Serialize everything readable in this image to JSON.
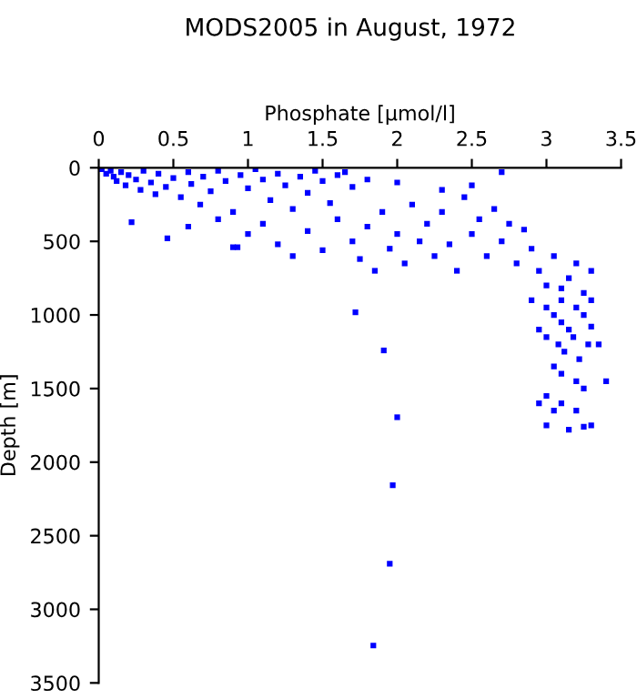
{
  "chart_data": {
    "type": "scatter",
    "title": "MODS2005 in August, 1972",
    "xlabel": "Phosphate [µmol/l]",
    "ylabel": "Depth [m]",
    "xlim": [
      0,
      3.5
    ],
    "xticks": [
      0,
      0.5,
      1,
      1.5,
      2,
      2.5,
      3,
      3.5
    ],
    "ylim": [
      3500,
      0
    ],
    "yticks": [
      0,
      500,
      1000,
      1500,
      2000,
      2500,
      3000,
      3500
    ],
    "marker": "square",
    "grid": false,
    "legend": false,
    "series": [
      {
        "color": "#0000ff",
        "x": [
          0.02,
          0.05,
          0.08,
          0.1,
          0.12,
          0.15,
          0.18,
          0.2,
          0.25,
          0.28,
          0.3,
          0.35,
          0.38,
          0.4,
          0.45,
          0.5,
          0.55,
          0.6,
          0.62,
          0.68,
          0.7,
          0.75,
          0.8,
          0.85,
          0.9,
          0.95,
          1.0,
          1.05,
          1.1,
          1.15,
          1.2,
          1.25,
          1.3,
          1.35,
          1.4,
          1.45,
          1.5,
          1.55,
          1.6,
          1.65,
          1.7,
          0.22,
          0.46,
          0.93,
          0.6,
          0.8,
          0.9,
          1.0,
          1.1,
          1.2,
          1.3,
          1.4,
          1.5,
          1.6,
          1.7,
          1.75,
          1.8,
          1.85,
          1.9,
          1.95,
          2.0,
          2.05,
          2.1,
          2.15,
          2.2,
          2.25,
          2.3,
          2.35,
          2.4,
          2.45,
          2.5,
          2.55,
          2.6,
          2.65,
          2.7,
          2.75,
          2.8,
          2.85,
          2.9,
          2.3,
          2.0,
          1.8,
          2.7,
          2.5,
          2.95,
          3.0,
          3.05,
          3.1,
          3.15,
          3.2,
          3.25,
          3.3,
          3.0,
          3.05,
          3.1,
          3.15,
          3.2,
          3.25,
          3.3,
          3.0,
          3.08,
          3.12,
          3.18,
          3.22,
          3.28,
          3.4,
          3.05,
          3.1,
          3.2,
          3.25,
          3.0,
          3.1,
          3.2,
          2.95,
          3.05,
          3.0,
          3.15,
          3.25,
          3.3,
          3.3,
          3.35,
          2.9,
          2.95,
          3.1,
          1.72,
          1.91,
          2.0,
          1.97,
          1.95,
          1.84
        ],
        "values": [
          10,
          40,
          20,
          60,
          90,
          30,
          120,
          50,
          80,
          150,
          20,
          100,
          180,
          40,
          130,
          70,
          200,
          30,
          110,
          250,
          60,
          160,
          20,
          90,
          300,
          50,
          140,
          10,
          80,
          220,
          40,
          120,
          280,
          60,
          170,
          20,
          90,
          240,
          50,
          30,
          130,
          370,
          480,
          540,
          400,
          350,
          540,
          450,
          380,
          520,
          600,
          430,
          560,
          350,
          500,
          620,
          400,
          700,
          300,
          550,
          450,
          650,
          250,
          500,
          380,
          600,
          300,
          520,
          700,
          200,
          450,
          350,
          600,
          280,
          500,
          380,
          650,
          420,
          550,
          150,
          100,
          80,
          30,
          120,
          700,
          800,
          600,
          900,
          750,
          650,
          850,
          700,
          950,
          1000,
          1050,
          1100,
          950,
          1000,
          900,
          1150,
          1200,
          1250,
          1150,
          1300,
          1200,
          1450,
          1350,
          1400,
          1450,
          1500,
          1550,
          1600,
          1650,
          1600,
          1650,
          1750,
          1780,
          1760,
          1750,
          1080,
          1200,
          900,
          1100,
          820,
          982,
          1241,
          1695,
          2157,
          2690,
          3246
        ]
      }
    ]
  }
}
